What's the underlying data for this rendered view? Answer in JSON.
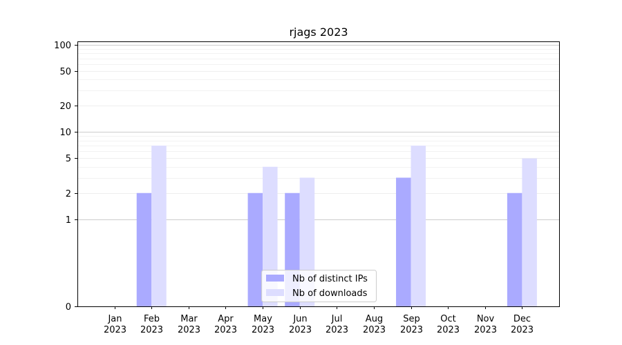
{
  "chart_data": {
    "type": "bar",
    "title": "rjags 2023",
    "scale": "symlog",
    "categories": [
      [
        "Jan",
        "2023"
      ],
      [
        "Feb",
        "2023"
      ],
      [
        "Mar",
        "2023"
      ],
      [
        "Apr",
        "2023"
      ],
      [
        "May",
        "2023"
      ],
      [
        "Jun",
        "2023"
      ],
      [
        "Jul",
        "2023"
      ],
      [
        "Aug",
        "2023"
      ],
      [
        "Sep",
        "2023"
      ],
      [
        "Oct",
        "2023"
      ],
      [
        "Nov",
        "2023"
      ],
      [
        "Dec",
        "2023"
      ]
    ],
    "series": [
      {
        "name": "Nb of distinct IPs",
        "color": "#aaaaff",
        "values": [
          0,
          2,
          0,
          0,
          2,
          2,
          0,
          0,
          3,
          0,
          0,
          2
        ]
      },
      {
        "name": "Nb of downloads",
        "color": "#ddddff",
        "values": [
          0,
          7,
          0,
          0,
          4,
          3,
          0,
          0,
          7,
          0,
          0,
          5
        ]
      }
    ],
    "yticks": [
      0,
      1,
      2,
      5,
      10,
      20,
      50,
      100
    ],
    "ylim": [
      0,
      110
    ],
    "grid": true,
    "legend_position": "lower-center"
  }
}
